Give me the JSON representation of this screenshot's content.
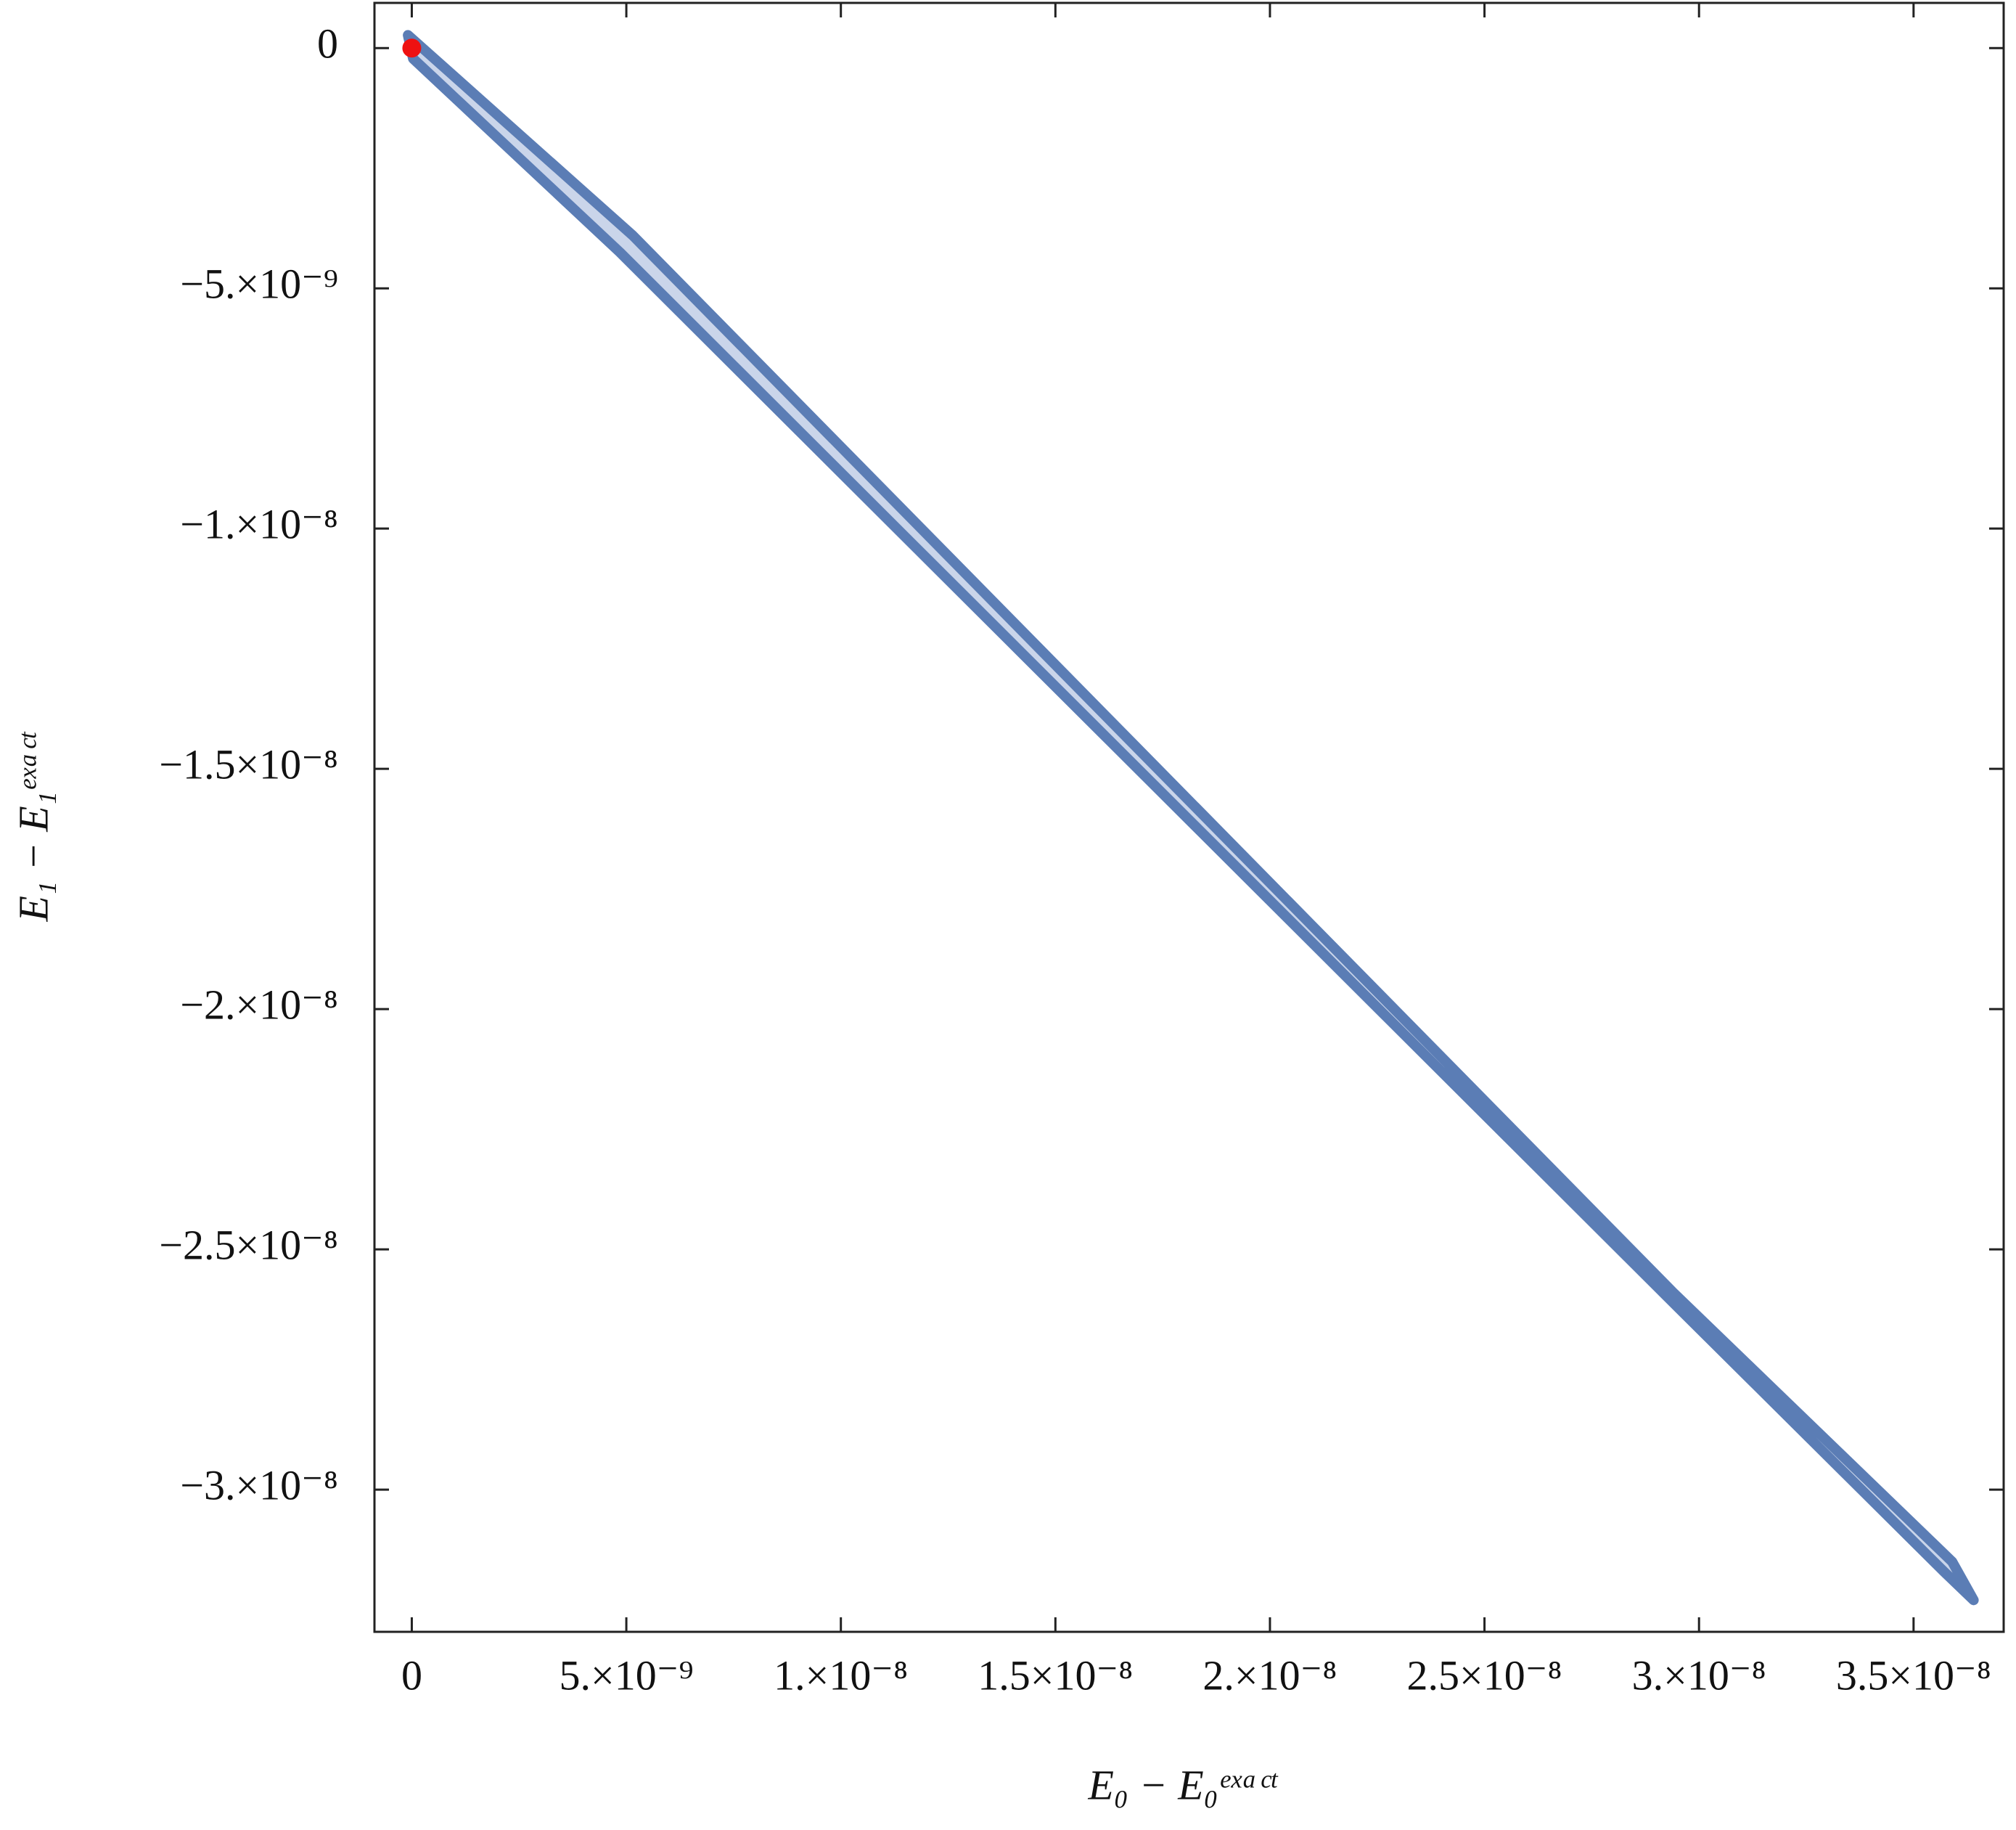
{
  "chart_data": {
    "type": "region",
    "x_label": "E₀ − E₀ᵉˣᵃᶜᵗ",
    "y_label": "E₁ − E₁ᵉˣᵃᶜᵗ",
    "xlim": [
      -8.7e-10,
      3.71e-08
    ],
    "ylim": [
      -3.296e-08,
      9.4e-10
    ],
    "xticks": [
      0,
      {
        "value": 5e-09,
        "label": "5.×10⁻⁹"
      },
      {
        "value": 1e-08,
        "label": "1.×10⁻⁸"
      },
      {
        "value": 1.5e-08,
        "label": "1.5×10⁻⁸"
      },
      {
        "value": 2e-08,
        "label": "2.×10⁻⁸"
      },
      {
        "value": 2.5e-08,
        "label": "2.5×10⁻⁸"
      },
      {
        "value": 3e-08,
        "label": "3.×10⁻⁸"
      },
      {
        "value": 3.5e-08,
        "label": "3.5×10⁻⁸"
      }
    ],
    "yticks": [
      0,
      {
        "value": -5e-09,
        "label": "−5.×10⁻⁹"
      },
      {
        "value": -1e-08,
        "label": "−1.×10⁻⁸"
      },
      {
        "value": -1.5e-08,
        "label": "−1.5×10⁻⁸"
      },
      {
        "value": -2e-08,
        "label": "−2.×10⁻⁸"
      },
      {
        "value": -2.5e-08,
        "label": "−2.5×10⁻⁸"
      },
      {
        "value": -3e-08,
        "label": "−3.×10⁻⁸"
      }
    ],
    "region": {
      "color": "#5b7db5",
      "fill": "#cad5ea",
      "x": [
        -9e-11,
        5.15e-09,
        2.94e-08,
        3.59e-08,
        3.64e-08,
        3.57e-08,
        2.95e-08,
        4.85e-09,
        3e-11
      ],
      "y": [
        2.7e-10,
        -3.9e-09,
        -2.59e-08,
        -3.15e-08,
        -3.23e-08,
        -3.17e-08,
        -2.62e-08,
        -4.25e-09,
        -2.2e-10
      ]
    },
    "point": {
      "color": "#ee1111",
      "x": 0,
      "y": 0
    }
  }
}
